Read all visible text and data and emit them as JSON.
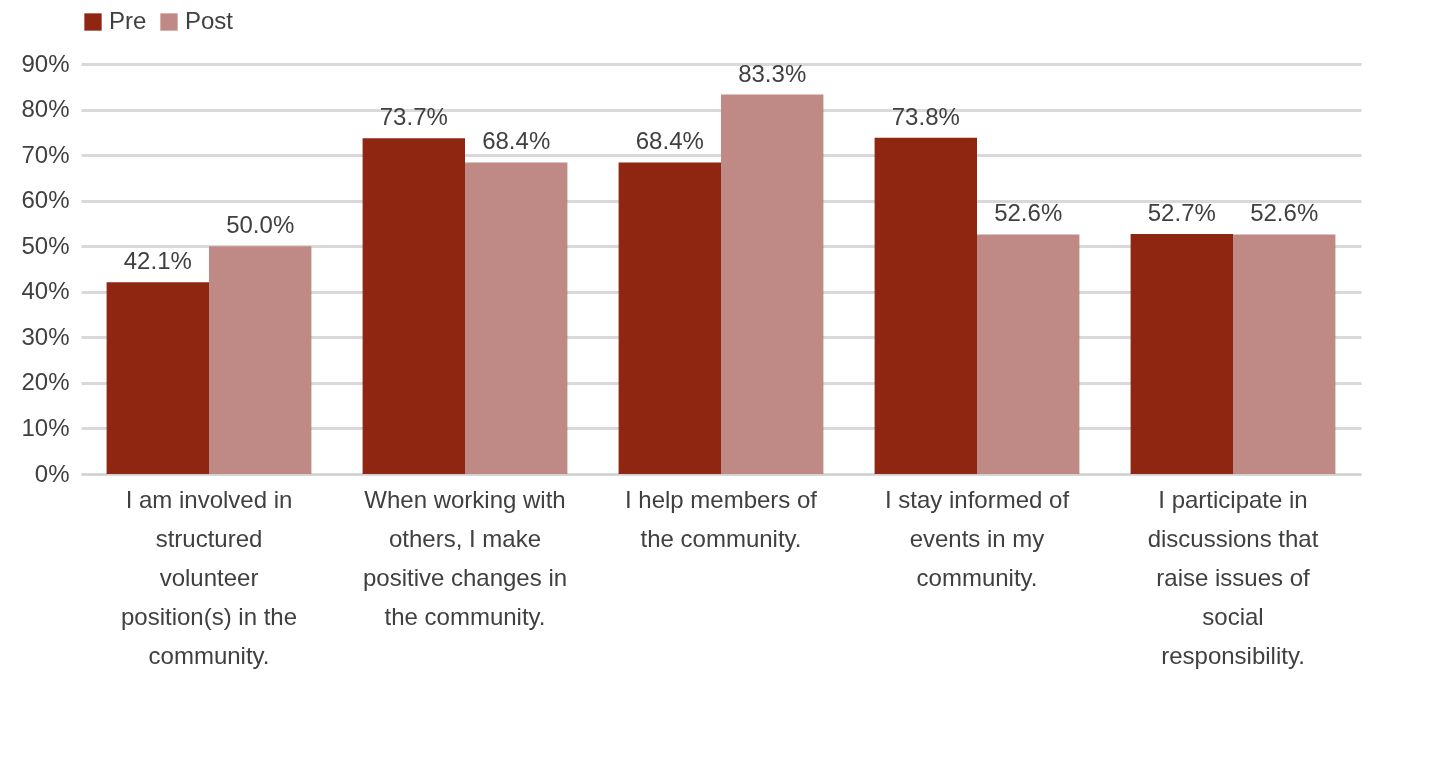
{
  "chart_data": {
    "type": "bar",
    "categories": [
      "I am involved in structured volunteer position(s) in the community.",
      "When working with others, I make positive changes in the community.",
      "I help members of the community.",
      "I stay informed of events in my community.",
      "I participate in discussions that raise issues of social responsibility."
    ],
    "series": [
      {
        "name": "Pre",
        "color": "#8e2611",
        "values": [
          42.1,
          73.7,
          68.4,
          73.8,
          52.7
        ],
        "value_labels": [
          "42.1%",
          "73.7%",
          "68.4%",
          "73.8%",
          "52.7%"
        ]
      },
      {
        "name": "Post",
        "color": "#bf8a85",
        "values": [
          50.0,
          68.4,
          83.3,
          52.6,
          52.6
        ],
        "value_labels": [
          "50.0%",
          "68.4%",
          "83.3%",
          "52.6%",
          "52.6%"
        ]
      }
    ],
    "ylim": [
      0,
      90
    ],
    "yticks": [
      {
        "value": 0,
        "label": "0%"
      },
      {
        "value": 10,
        "label": "10%"
      },
      {
        "value": 20,
        "label": "20%"
      },
      {
        "value": 30,
        "label": "30%"
      },
      {
        "value": 40,
        "label": "40%"
      },
      {
        "value": 50,
        "label": "50%"
      },
      {
        "value": 60,
        "label": "60%"
      },
      {
        "value": 70,
        "label": "70%"
      },
      {
        "value": 80,
        "label": "80%"
      },
      {
        "value": 90,
        "label": "90%"
      }
    ],
    "grid": "y",
    "legend": "top"
  }
}
